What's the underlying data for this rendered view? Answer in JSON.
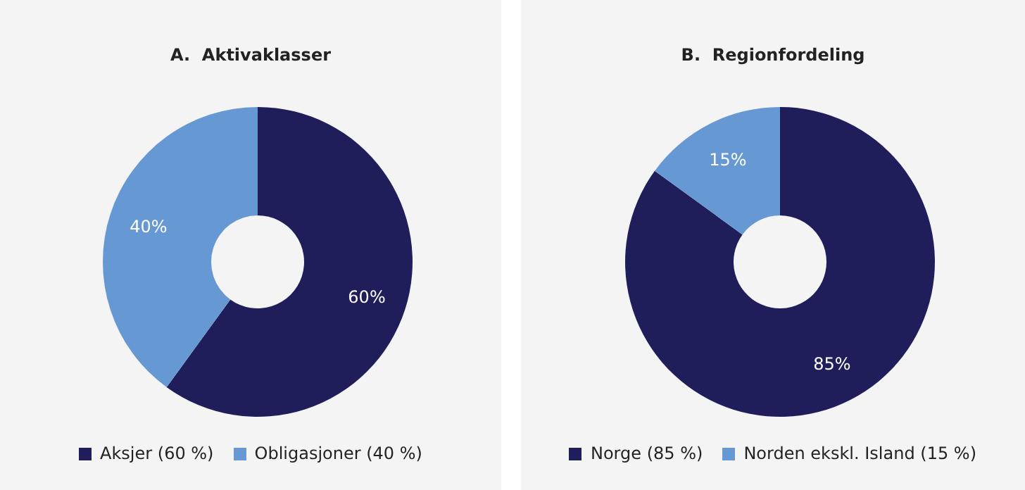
{
  "chart_data": [
    {
      "type": "donut",
      "title": "A.  Aktivaklasser",
      "categories": [
        "Aksjer (60 %)",
        "Obligasjoner (40 %)"
      ],
      "values": [
        60,
        40
      ],
      "colors": [
        "#1f1e5b",
        "#6699d3"
      ],
      "value_labels": [
        "60%",
        "40%"
      ],
      "legend": "bottom"
    },
    {
      "type": "donut",
      "title": "B.  Regionfordeling",
      "categories": [
        "Norge (85 %)",
        "Norden ekskl. Island (15 %)"
      ],
      "values": [
        85,
        15
      ],
      "colors": [
        "#1f1e5b",
        "#6699d3"
      ],
      "value_labels": [
        "85%",
        "15%"
      ],
      "legend": "bottom"
    }
  ]
}
